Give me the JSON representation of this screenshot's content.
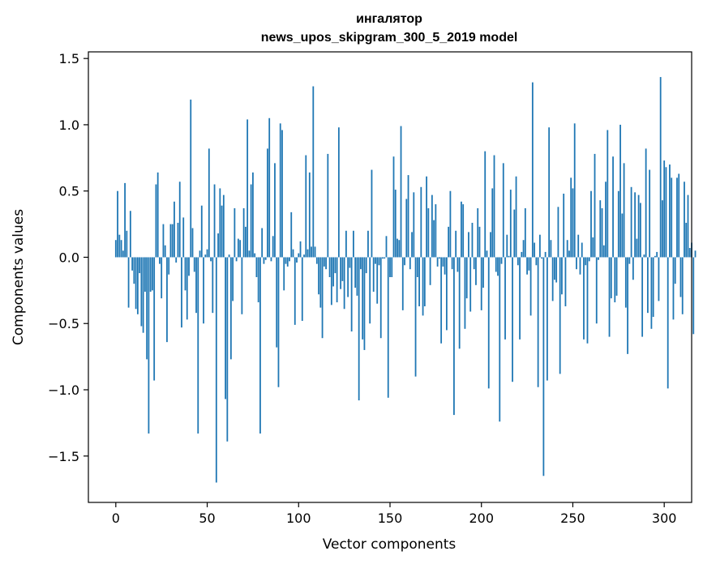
{
  "chart_data": {
    "type": "bar",
    "title_line1": "ингалятор",
    "title_line2": "news_upos_skipgram_300_5_2019 model",
    "xlabel": "Vector components",
    "ylabel": "Components values",
    "xlim": [
      -15,
      315
    ],
    "ylim": [
      -1.85,
      1.55
    ],
    "xticks": [
      0,
      50,
      100,
      150,
      200,
      250,
      300
    ],
    "xtick_labels": [
      "0",
      "50",
      "100",
      "150",
      "200",
      "250",
      "300"
    ],
    "yticks": [
      -1.5,
      -1.0,
      -0.5,
      0.0,
      0.5,
      1.0,
      1.5
    ],
    "ytick_labels": [
      "−1.5",
      "−1.0",
      "−0.5",
      "0.0",
      "0.5",
      "1.0",
      "1.5"
    ],
    "bar_color": "#1f77b4",
    "grid": false,
    "values": [
      0.13,
      0.5,
      0.17,
      0.13,
      0.05,
      0.56,
      0.2,
      -0.38,
      0.35,
      -0.1,
      -0.2,
      -0.39,
      -0.43,
      -0.12,
      -0.52,
      -0.57,
      -0.26,
      -0.77,
      -1.33,
      -0.26,
      -0.25,
      -0.93,
      0.55,
      0.64,
      -0.05,
      -0.31,
      0.25,
      0.09,
      -0.64,
      -0.13,
      0.25,
      0.25,
      0.42,
      -0.04,
      0.26,
      0.57,
      -0.53,
      0.3,
      -0.25,
      -0.47,
      -0.14,
      1.19,
      0.22,
      -0.11,
      -0.42,
      -1.33,
      0.05,
      0.39,
      -0.5,
      0.02,
      0.06,
      0.82,
      -0.03,
      -0.42,
      0.55,
      -1.7,
      0.18,
      0.52,
      0.39,
      0.47,
      -1.07,
      -1.39,
      0.02,
      -0.77,
      -0.33,
      0.37,
      -0.03,
      0.14,
      0.13,
      -0.43,
      0.37,
      0.23,
      1.04,
      0.05,
      0.55,
      0.64,
      0.03,
      -0.15,
      -0.34,
      -1.33,
      0.22,
      -0.05,
      -0.02,
      0.82,
      1.05,
      -0.03,
      0.16,
      0.71,
      -0.68,
      -0.98,
      1.01,
      0.96,
      -0.25,
      -0.05,
      -0.07,
      -0.03,
      0.34,
      0.06,
      -0.51,
      -0.04,
      0.03,
      0.12,
      -0.48,
      0.02,
      0.77,
      0.06,
      0.64,
      0.08,
      1.29,
      0.08,
      -0.05,
      -0.28,
      -0.38,
      -0.61,
      -0.07,
      -0.09,
      0.78,
      -0.15,
      -0.36,
      -0.22,
      -0.12,
      -0.34,
      0.98,
      -0.24,
      -0.18,
      -0.39,
      0.2,
      -0.3,
      -0.08,
      -0.56,
      0.2,
      -0.23,
      -0.29,
      -1.08,
      -0.09,
      -0.62,
      -0.7,
      -0.12,
      0.2,
      -0.5,
      0.66,
      -0.26,
      -0.05,
      -0.35,
      -0.06,
      -0.61,
      -0.01,
      -0.01,
      0.16,
      -1.06,
      -0.15,
      -0.15,
      0.76,
      0.51,
      0.14,
      0.13,
      0.99,
      -0.4,
      -0.06,
      0.44,
      0.62,
      -0.09,
      0.19,
      0.49,
      -0.9,
      -0.15,
      -0.37,
      0.53,
      -0.44,
      -0.37,
      0.61,
      0.37,
      -0.21,
      0.47,
      0.28,
      0.4,
      -0.07,
      -0.01,
      -0.65,
      -0.07,
      -0.13,
      -0.55,
      0.23,
      0.5,
      -0.09,
      -1.19,
      0.2,
      -0.11,
      -0.69,
      0.42,
      0.4,
      -0.54,
      -0.31,
      0.19,
      -0.41,
      0.26,
      -0.09,
      -0.21,
      0.37,
      0.23,
      -0.4,
      -0.23,
      0.8,
      0.05,
      -0.99,
      0.19,
      0.52,
      0.77,
      -0.11,
      -0.14,
      -1.24,
      -0.05,
      0.71,
      -0.62,
      0.17,
      0.01,
      0.51,
      -0.94,
      0.36,
      0.61,
      -0.06,
      -0.62,
      0.04,
      0.13,
      0.37,
      -0.13,
      -0.1,
      -0.44,
      1.32,
      0.11,
      -0.06,
      -0.98,
      0.17,
      -0.01,
      -1.65,
      0.04,
      -0.93,
      0.98,
      0.13,
      -0.33,
      -0.17,
      -0.19,
      0.38,
      -0.88,
      -0.28,
      0.48,
      -0.37,
      0.13,
      0.05,
      0.6,
      0.52,
      1.01,
      -0.09,
      0.17,
      -0.13,
      0.11,
      -0.62,
      -0.06,
      -0.65,
      -0.03,
      0.5,
      0.15,
      0.78,
      -0.5,
      -0.02,
      0.43,
      0.37,
      0.09,
      0.57,
      0.96,
      -0.6,
      -0.31,
      0.76,
      -0.34,
      -0.29,
      0.5,
      1.0,
      0.33,
      0.71,
      -0.38,
      -0.73,
      -0.05,
      0.53,
      -0.17,
      0.49,
      0.14,
      0.47,
      0.41,
      -0.6,
      0.02,
      0.82,
      -0.42,
      0.66,
      -0.54,
      -0.45,
      0.01,
      0.04,
      -0.33,
      1.36,
      0.43,
      0.73,
      0.68,
      -0.99,
      0.7,
      0.6,
      -0.47,
      -0.2,
      0.6,
      0.63,
      -0.3,
      -0.43,
      0.57,
      0.26,
      0.47,
      0.07,
      0.11,
      -0.58,
      0.05
    ]
  }
}
